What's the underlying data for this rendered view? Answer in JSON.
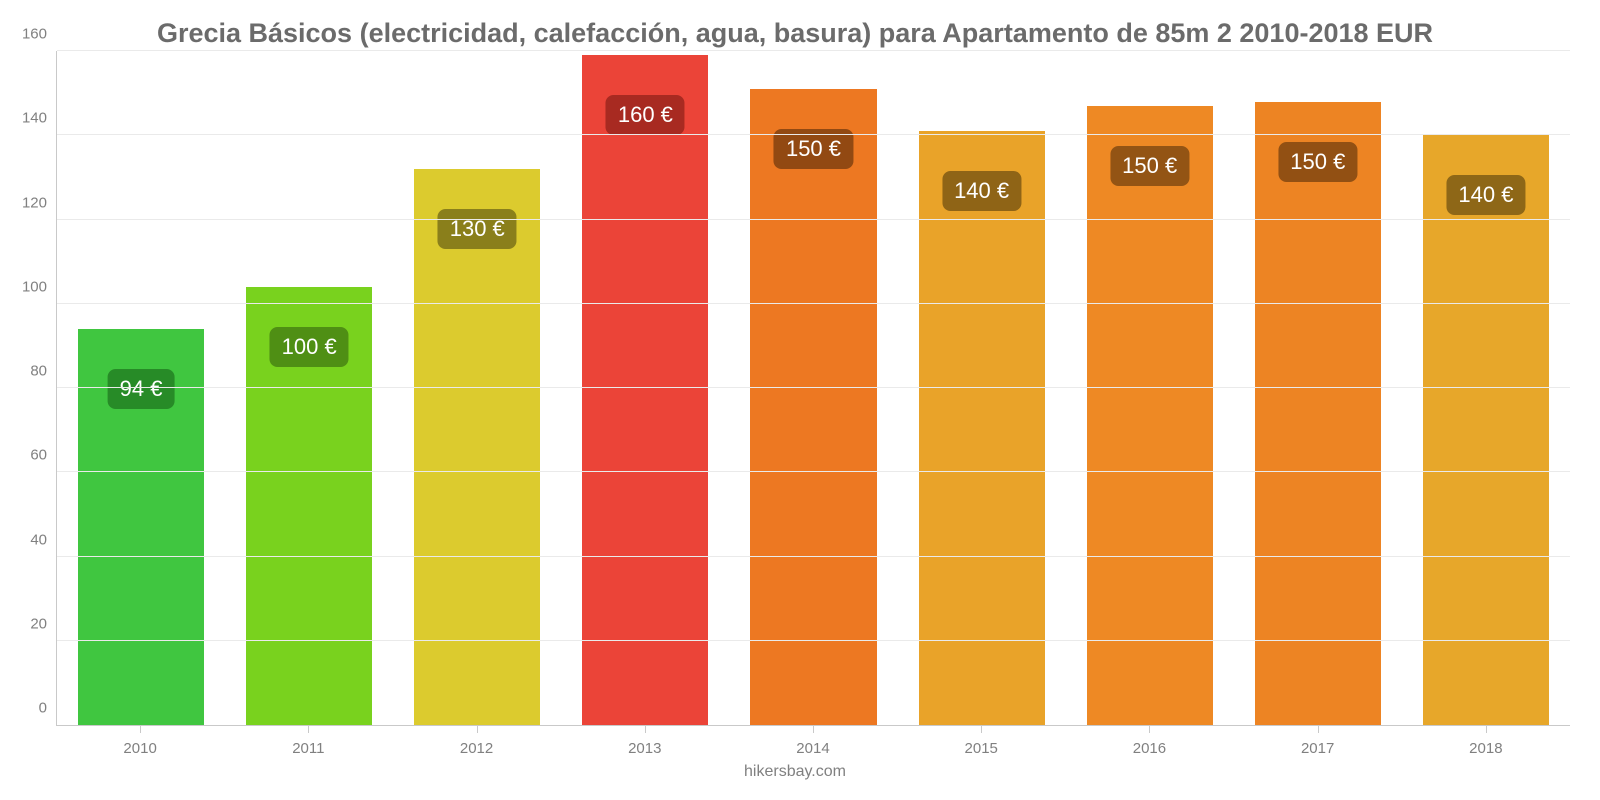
{
  "chart": {
    "type": "bar",
    "title": "Grecia Básicos (electricidad, calefacción, agua, basura) para Apartamento de 85m 2 2010-2018 EUR",
    "title_fontsize": 27,
    "title_color": "#6b6b6b",
    "attribution": "hikersbay.com",
    "background_color": "#ffffff",
    "grid_color": "#eaeaea",
    "axis_color": "#c9c9c9",
    "label_fontsize": 15,
    "label_color": "#808080",
    "y": {
      "min": 0,
      "max": 160,
      "tick_step": 20,
      "ticks": [
        0,
        20,
        40,
        60,
        80,
        100,
        120,
        140,
        160
      ]
    },
    "bar_width_ratio": 0.75,
    "value_label_fontsize": 22,
    "categories": [
      "2010",
      "2011",
      "2012",
      "2013",
      "2014",
      "2015",
      "2016",
      "2017",
      "2018"
    ],
    "series": [
      {
        "year": "2010",
        "value": 94,
        "display": "94 €",
        "bar_color": "#40c640",
        "badge_bg": "#278b27",
        "badge_text": "#ffffff"
      },
      {
        "year": "2011",
        "value": 104,
        "display": "100 €",
        "bar_color": "#79d21e",
        "badge_bg": "#4f8f14",
        "badge_text": "#ffffff"
      },
      {
        "year": "2012",
        "value": 132,
        "display": "130 €",
        "bar_color": "#dccb2e",
        "badge_bg": "#8a7f1b",
        "badge_text": "#ffffff"
      },
      {
        "year": "2013",
        "value": 159,
        "display": "160 €",
        "bar_color": "#eb4438",
        "badge_bg": "#a82a21",
        "badge_text": "#ffffff"
      },
      {
        "year": "2014",
        "value": 151,
        "display": "150 €",
        "bar_color": "#ed7822",
        "badge_bg": "#924912",
        "badge_text": "#ffffff"
      },
      {
        "year": "2015",
        "value": 141,
        "display": "140 €",
        "bar_color": "#e9a329",
        "badge_bg": "#8f6416",
        "badge_text": "#ffffff"
      },
      {
        "year": "2016",
        "value": 147,
        "display": "150 €",
        "bar_color": "#ee8924",
        "badge_bg": "#935414",
        "badge_text": "#ffffff"
      },
      {
        "year": "2017",
        "value": 148,
        "display": "150 €",
        "bar_color": "#ed8423",
        "badge_bg": "#925013",
        "badge_text": "#ffffff"
      },
      {
        "year": "2018",
        "value": 140,
        "display": "140 €",
        "bar_color": "#e7a72a",
        "badge_bg": "#8e6717",
        "badge_text": "#ffffff"
      }
    ]
  }
}
